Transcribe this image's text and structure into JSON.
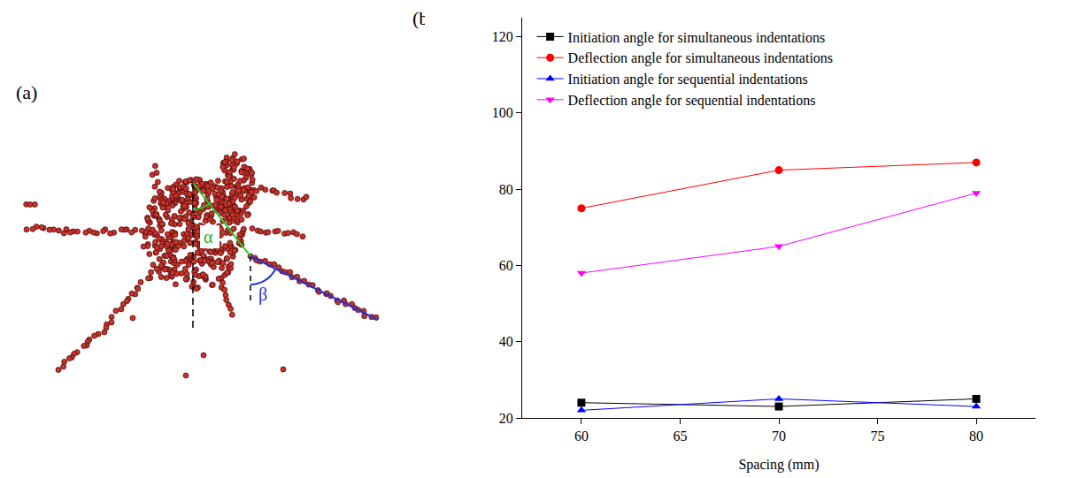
{
  "figure_a": {
    "label": "(a)",
    "angle_labels": [
      "α",
      "β"
    ]
  },
  "chart_data": {
    "type": "line",
    "panel_label": "(b)",
    "x_label": "Spacing (mm)",
    "x": [
      60,
      70,
      80
    ],
    "xlim": [
      57,
      83
    ],
    "xticks": [
      60,
      65,
      70,
      75,
      80
    ],
    "ylim": [
      20,
      125
    ],
    "yticks": [
      20,
      40,
      60,
      80,
      100,
      120
    ],
    "grid": false,
    "legend": "top-left",
    "series": [
      {
        "name": "Initiation angle for simultaneous indentations",
        "color": "#000000",
        "marker": "square",
        "values": [
          24,
          23,
          25
        ]
      },
      {
        "name": "Deflection angle for simultaneous indentations",
        "color": "#ff0000",
        "marker": "circle",
        "values": [
          75,
          85,
          87
        ]
      },
      {
        "name": "Initiation angle for sequential indentations",
        "color": "#0000ff",
        "marker": "triangle-up",
        "values": [
          22,
          25,
          23
        ]
      },
      {
        "name": "Deflection angle for sequential indentations",
        "color": "#ff00ff",
        "marker": "triangle-down",
        "values": [
          58,
          65,
          79
        ]
      }
    ]
  }
}
